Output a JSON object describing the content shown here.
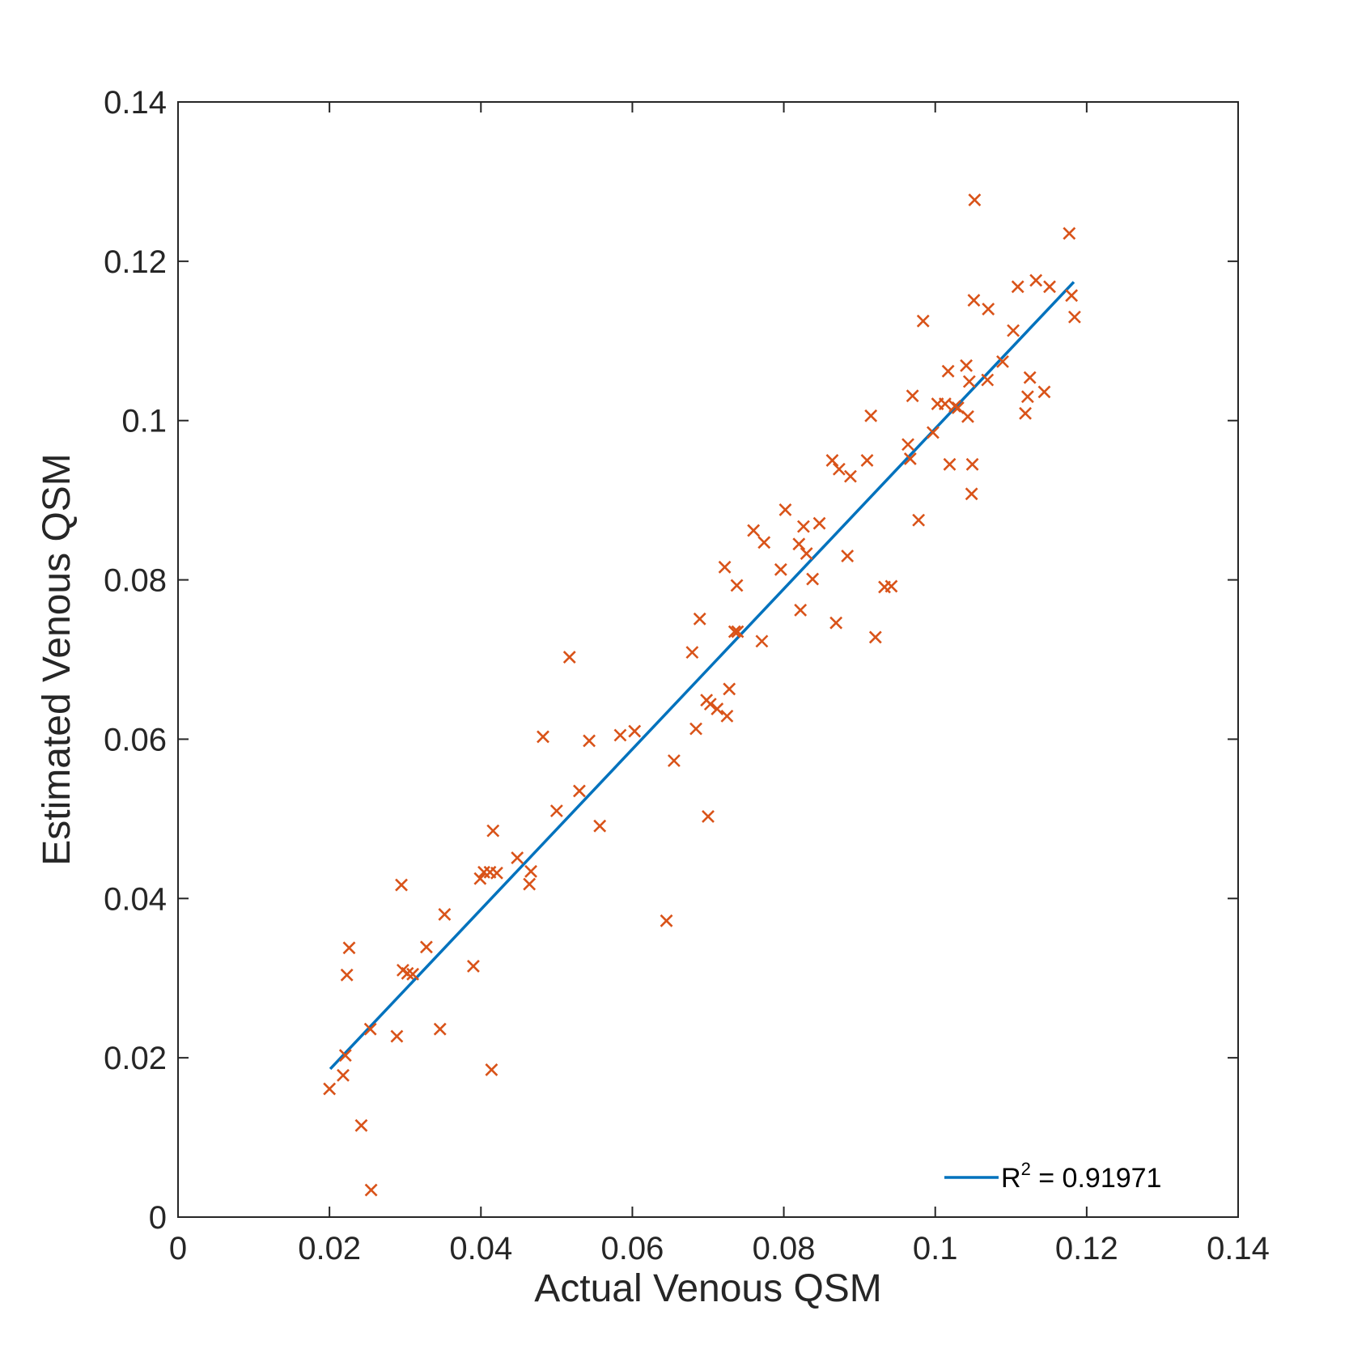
{
  "chart_data": {
    "type": "scatter",
    "title": "",
    "xlabel": "Actual Venous QSM",
    "ylabel": "Estimated Venous QSM",
    "xlim": [
      0,
      0.14
    ],
    "ylim": [
      0,
      0.14
    ],
    "xticks": [
      0,
      0.02,
      0.04,
      0.06,
      0.08,
      0.1,
      0.12,
      0.14
    ],
    "xtick_labels": [
      "0",
      "0.02",
      "0.04",
      "0.06",
      "0.08",
      "0.1",
      "0.12",
      "0.14"
    ],
    "yticks": [
      0,
      0.02,
      0.04,
      0.06,
      0.08,
      0.1,
      0.12,
      0.14
    ],
    "ytick_labels": [
      "0",
      "0.02",
      "0.04",
      "0.06",
      "0.08",
      "0.1",
      "0.12",
      "0.14"
    ],
    "grid": false,
    "legend_position": "bottom-right",
    "colors": {
      "points": "#D95319",
      "fit_line": "#0072BD",
      "axes": "#262626"
    },
    "points": {
      "marker": "x",
      "x": [
        0.02,
        0.0218,
        0.0221,
        0.0223,
        0.0226,
        0.0242,
        0.0254,
        0.0255,
        0.0289,
        0.0295,
        0.0297,
        0.0303,
        0.031,
        0.0328,
        0.0346,
        0.0352,
        0.039,
        0.0399,
        0.0404,
        0.0412,
        0.0414,
        0.0416,
        0.0421,
        0.0448,
        0.0464,
        0.0466,
        0.0482,
        0.05,
        0.0517,
        0.053,
        0.0543,
        0.0557,
        0.0584,
        0.0603,
        0.0645,
        0.0655,
        0.0679,
        0.0684,
        0.0689,
        0.0698,
        0.07,
        0.0703,
        0.0712,
        0.0722,
        0.0725,
        0.0728,
        0.0735,
        0.0738,
        0.0739,
        0.076,
        0.0771,
        0.0774,
        0.0796,
        0.0802,
        0.082,
        0.0822,
        0.0826,
        0.083,
        0.0838,
        0.0847,
        0.0864,
        0.0869,
        0.0873,
        0.0884,
        0.0888,
        0.091,
        0.0915,
        0.0921,
        0.0933,
        0.0942,
        0.0964,
        0.0967,
        0.097,
        0.0978,
        0.0984,
        0.0997,
        0.1003,
        0.1013,
        0.1017,
        0.1019,
        0.1026,
        0.103,
        0.1041,
        0.1043,
        0.1045,
        0.1048,
        0.1049,
        0.1051,
        0.1052,
        0.1069,
        0.107,
        0.1089,
        0.1103,
        0.1109,
        0.1119,
        0.1122,
        0.1125,
        0.1133,
        0.1144,
        0.1151,
        0.1177,
        0.118,
        0.1184
      ],
      "y": [
        0.0161,
        0.0178,
        0.0203,
        0.0304,
        0.0338,
        0.0115,
        0.0236,
        0.0034,
        0.0227,
        0.0417,
        0.031,
        0.0306,
        0.0305,
        0.0339,
        0.0236,
        0.038,
        0.0315,
        0.0425,
        0.0433,
        0.0433,
        0.0185,
        0.0485,
        0.0432,
        0.0451,
        0.0418,
        0.0434,
        0.0603,
        0.051,
        0.0703,
        0.0535,
        0.0598,
        0.0491,
        0.0605,
        0.061,
        0.0372,
        0.0573,
        0.0709,
        0.0613,
        0.0751,
        0.0649,
        0.0503,
        0.0644,
        0.0638,
        0.0816,
        0.0629,
        0.0663,
        0.0735,
        0.0793,
        0.0735,
        0.0862,
        0.0723,
        0.0847,
        0.0813,
        0.0888,
        0.0845,
        0.0762,
        0.0867,
        0.0833,
        0.0801,
        0.0871,
        0.095,
        0.0746,
        0.0939,
        0.083,
        0.093,
        0.095,
        0.1006,
        0.0728,
        0.0791,
        0.0792,
        0.097,
        0.0952,
        0.1031,
        0.0875,
        0.1125,
        0.0985,
        0.1021,
        0.1021,
        0.1062,
        0.0945,
        0.1018,
        0.1016,
        0.1069,
        0.1005,
        0.1049,
        0.0908,
        0.0945,
        0.1151,
        0.1277,
        0.1051,
        0.114,
        0.1074,
        0.1113,
        0.1168,
        0.1009,
        0.103,
        0.1054,
        0.1176,
        0.1036,
        0.1168,
        0.1235,
        0.1157,
        0.113
      ]
    },
    "fit_line": {
      "x": [
        0.0201,
        0.1183
      ],
      "y": [
        0.0186,
        0.1174
      ]
    },
    "legend": {
      "entries": [
        {
          "base": "R",
          "superscript": "2",
          "rest": " = 0.91971"
        }
      ]
    }
  }
}
